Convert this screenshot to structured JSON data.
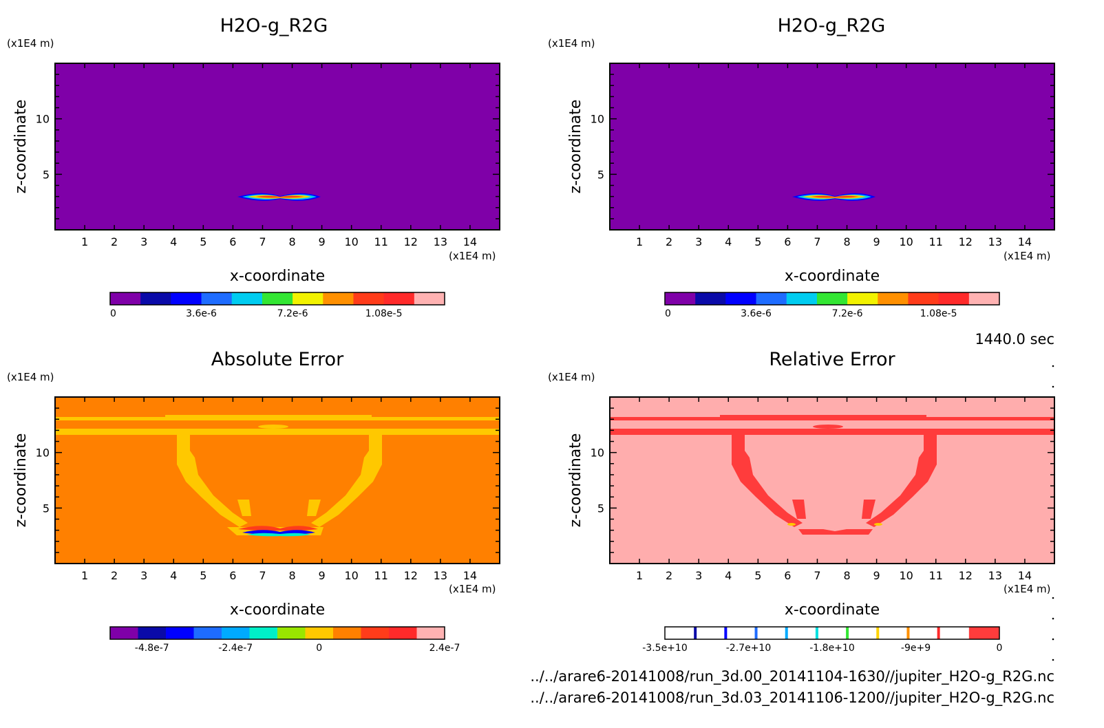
{
  "panels": [
    {
      "title": "H2O-g_R2G",
      "z_unit": "(x1E4 m)",
      "x_unit": "(x1E4 m)",
      "xlabel": "x-coordinate",
      "ylabel": "z-coordinate",
      "x_ticks": [
        "1",
        "2",
        "3",
        "4",
        "5",
        "6",
        "7",
        "8",
        "9",
        "10",
        "11",
        "12",
        "13",
        "14"
      ],
      "y_ticks": [
        "5",
        "10"
      ],
      "colorbar": {
        "colors": [
          "#7f00a8",
          "#0a0aa8",
          "#0000ff",
          "#1e6cff",
          "#00ccf0",
          "#33e633",
          "#f2f200",
          "#ff9000",
          "#ff3c1a",
          "#ff2a2a",
          "#ffb2b2"
        ],
        "labels": [
          "0",
          "3.6e-6",
          "7.2e-6",
          "1.08e-5"
        ]
      }
    },
    {
      "title": "H2O-g_R2G",
      "z_unit": "(x1E4 m)",
      "x_unit": "(x1E4 m)",
      "xlabel": "x-coordinate",
      "ylabel": "z-coordinate",
      "x_ticks": [
        "1",
        "2",
        "3",
        "4",
        "5",
        "6",
        "7",
        "8",
        "9",
        "10",
        "11",
        "12",
        "13",
        "14"
      ],
      "y_ticks": [
        "5",
        "10"
      ],
      "colorbar": {
        "colors": [
          "#7f00a8",
          "#0a0aa8",
          "#0000ff",
          "#1e6cff",
          "#00ccf0",
          "#33e633",
          "#f2f200",
          "#ff9000",
          "#ff3c1a",
          "#ff2a2a",
          "#ffb2b2"
        ],
        "labels": [
          "0",
          "3.6e-6",
          "7.2e-6",
          "1.08e-5"
        ]
      }
    },
    {
      "title": "Absolute Error",
      "z_unit": "(x1E4 m)",
      "x_unit": "(x1E4 m)",
      "xlabel": "x-coordinate",
      "ylabel": "z-coordinate",
      "x_ticks": [
        "1",
        "2",
        "3",
        "4",
        "5",
        "6",
        "7",
        "8",
        "9",
        "10",
        "11",
        "12",
        "13",
        "14"
      ],
      "y_ticks": [
        "5",
        "10"
      ],
      "colorbar": {
        "colors": [
          "#7f00a8",
          "#0a0aa8",
          "#0000ff",
          "#1e6cff",
          "#00aaff",
          "#00f0c8",
          "#99e600",
          "#ffc800",
          "#ff8000",
          "#ff3c1a",
          "#ff2a2a",
          "#ffb2b2"
        ],
        "labels": [
          "-4.8e-7",
          "-2.4e-7",
          "0",
          "2.4e-7"
        ]
      }
    },
    {
      "title": "Relative Error",
      "z_unit": "(x1E4 m)",
      "x_unit": "(x1E4 m)",
      "xlabel": "x-coordinate",
      "ylabel": "z-coordinate",
      "x_ticks": [
        "1",
        "2",
        "3",
        "4",
        "5",
        "6",
        "7",
        "8",
        "9",
        "10",
        "11",
        "12",
        "13",
        "14"
      ],
      "y_ticks": [
        "5",
        "10"
      ],
      "colorbar": {
        "colors": [
          "#ffffff",
          "#ffffff",
          "#ffffff",
          "#ffffff",
          "#ffffff",
          "#ffffff",
          "#ffffff",
          "#ffffff",
          "#ffffff",
          "#ffffff",
          "#ff3c3c"
        ],
        "separators": [
          "#0a0aa8",
          "#0000ff",
          "#1e6cff",
          "#00aaff",
          "#00e0e0",
          "#33e633",
          "#ffd200",
          "#ff9000",
          "#ff2a2a"
        ],
        "labels": [
          "-3.5e+10",
          "-2.7e+10",
          "-1.8e+10",
          "-9e+9",
          "0"
        ]
      }
    }
  ],
  "time_label": "1440.0 sec",
  "file_paths": [
    "../../arare6-20141008/run_3d.00_20141104-1630//jupiter_H2O-g_R2G.nc",
    "../../arare6-20141008/run_3d.03_20141106-1200//jupiter_H2O-g_R2G.nc"
  ],
  "chart_data": [
    {
      "type": "heatmap",
      "title": "H2O-g_R2G",
      "xlabel": "x-coordinate",
      "ylabel": "z-coordinate",
      "xlim": [
        0,
        15
      ],
      "ylim": [
        0,
        15
      ],
      "x_ticks": [
        1,
        2,
        3,
        4,
        5,
        6,
        7,
        8,
        9,
        10,
        11,
        12,
        13,
        14
      ],
      "y_ticks": [
        5,
        10
      ],
      "units": "(x1E4 m)",
      "background_value": 0,
      "colorbar_labels": [
        "0",
        "3.6e-6",
        "7.2e-6",
        "1.08e-5"
      ],
      "features": [
        {
          "shape": "thin band",
          "x_range": [
            6.2,
            9.0
          ],
          "z_center": 2.9,
          "peak_value": "1.08e-5"
        }
      ]
    },
    {
      "type": "heatmap",
      "title": "H2O-g_R2G",
      "xlabel": "x-coordinate",
      "ylabel": "z-coordinate",
      "xlim": [
        0,
        15
      ],
      "ylim": [
        0,
        15
      ],
      "x_ticks": [
        1,
        2,
        3,
        4,
        5,
        6,
        7,
        8,
        9,
        10,
        11,
        12,
        13,
        14
      ],
      "y_ticks": [
        5,
        10
      ],
      "units": "(x1E4 m)",
      "background_value": 0,
      "colorbar_labels": [
        "0",
        "3.6e-6",
        "7.2e-6",
        "1.08e-5"
      ],
      "features": [
        {
          "shape": "thin band",
          "x_range": [
            6.2,
            9.0
          ],
          "z_center": 2.9,
          "peak_value": "1.08e-5"
        }
      ]
    },
    {
      "type": "heatmap",
      "title": "Absolute Error",
      "xlabel": "x-coordinate",
      "ylabel": "z-coordinate",
      "xlim": [
        0,
        15
      ],
      "ylim": [
        0,
        15
      ],
      "x_ticks": [
        1,
        2,
        3,
        4,
        5,
        6,
        7,
        8,
        9,
        10,
        11,
        12,
        13,
        14
      ],
      "y_ticks": [
        5,
        10
      ],
      "units": "(x1E4 m)",
      "background_value": 0,
      "colorbar_labels": [
        "-4.8e-7",
        "-2.4e-7",
        "0",
        "2.4e-7"
      ],
      "features": [
        {
          "shape": "horizontal bands",
          "z": [
            11.5,
            12.9
          ]
        },
        {
          "shape": "bowl",
          "x_range": [
            4.1,
            11.1
          ],
          "z_range": [
            2.6,
            11.5
          ]
        },
        {
          "shape": "dipole",
          "x_range": [
            6.4,
            8.8
          ],
          "z_center": 2.9
        }
      ]
    },
    {
      "type": "heatmap",
      "title": "Relative Error",
      "xlabel": "x-coordinate",
      "ylabel": "z-coordinate",
      "xlim": [
        0,
        15
      ],
      "ylim": [
        0,
        15
      ],
      "x_ticks": [
        1,
        2,
        3,
        4,
        5,
        6,
        7,
        8,
        9,
        10,
        11,
        12,
        13,
        14
      ],
      "y_ticks": [
        5,
        10
      ],
      "units": "(x1E4 m)",
      "background_value": 0,
      "colorbar_labels": [
        "-3.5e+10",
        "-2.7e+10",
        "-1.8e+10",
        "-9e+9",
        "0"
      ],
      "features": [
        {
          "shape": "horizontal bands",
          "z": [
            11.5,
            12.9
          ]
        },
        {
          "shape": "bowl",
          "x_range": [
            4.1,
            11.1
          ],
          "z_range": [
            2.6,
            11.5
          ]
        }
      ]
    }
  ]
}
